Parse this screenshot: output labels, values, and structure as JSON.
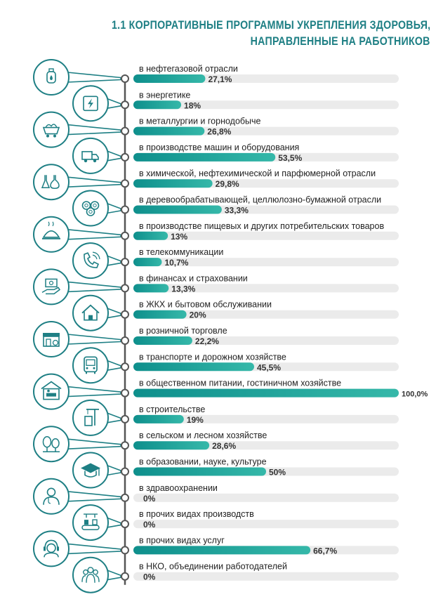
{
  "title_line1": "1.1 КОРПОРАТИВНЫЕ ПРОГРАММЫ УКРЕПЛЕНИЯ ЗДОРОВЬЯ,",
  "title_line2": "НАПРАВЛЕННЫЕ НА РАБОТНИКОВ",
  "colors": {
    "accent": "#1e7f84",
    "bar_start": "#0e8f8c",
    "bar_end": "#35b8a9",
    "track": "#ebebeb",
    "axis": "#555555",
    "value_text": "#333333",
    "label_text": "#222222"
  },
  "chart_data": {
    "type": "bar",
    "orientation": "horizontal",
    "xlim": [
      0,
      100
    ],
    "categories": [
      "в нефтегазовой отрасли",
      "в энергетике",
      "в металлургии и горнодобыче",
      "в производстве машин и оборудования",
      "в химической, нефтехимической и парфюмерной отрасли",
      "в деревообрабатывающей, целлюлозно-бумажной отрасли",
      "в производстве пищевых и других потребительских товаров",
      "в телекоммуникации",
      "в финансах и страховании",
      "в ЖКХ и бытовом обслуживании",
      "в розничной торговле",
      "в транспорте и дорожном хозяйстве",
      "в общественном питании, гостиничном хозяйстве",
      "в строительстве",
      "в сельском и лесном хозяйстве",
      "в образовании, науке, культуре",
      "в здравоохранении",
      "в прочих видах производств",
      "в прочих видах услуг",
      "в НКО, объединении работодателей"
    ],
    "values": [
      27.1,
      18,
      26.8,
      53.5,
      29.8,
      33.3,
      13,
      10.7,
      13.3,
      20,
      22.2,
      45.5,
      100,
      19,
      28.6,
      50,
      0,
      0,
      66.7,
      0
    ],
    "value_labels": [
      "27,1%",
      "18%",
      "26,8%",
      "53,5%",
      "29,8%",
      "33,3%",
      "13%",
      "10,7%",
      "13,3%",
      "20%",
      "22,2%",
      "45,5%",
      "100,0%",
      "19%",
      "28,6%",
      "50%",
      "0%",
      "0%",
      "66,7%",
      "0%"
    ],
    "icons": [
      "gas-cylinder-icon",
      "electric-panel-icon",
      "mine-cart-icon",
      "truck-icon",
      "flasks-icon",
      "logs-icon",
      "food-dish-icon",
      "phone-icon",
      "money-hand-icon",
      "house-icon",
      "store-icon",
      "bus-icon",
      "hotel-bed-icon",
      "crane-building-icon",
      "trees-icon",
      "graduation-cap-icon",
      "doctor-icon",
      "conveyor-icon",
      "support-headset-icon",
      "group-people-icon"
    ]
  }
}
